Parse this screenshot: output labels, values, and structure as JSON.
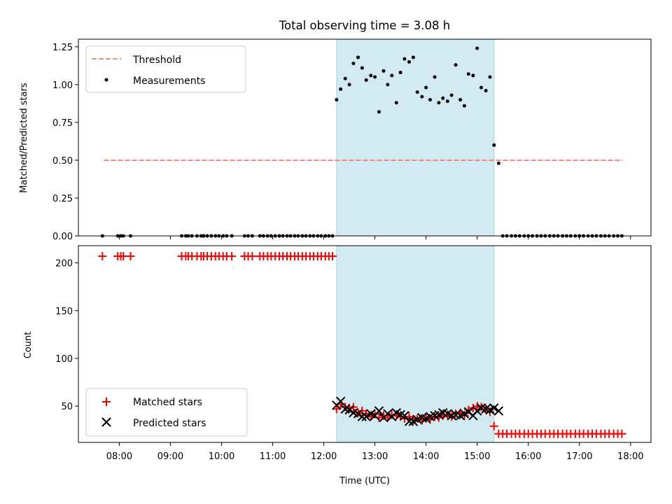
{
  "chart_data": [
    {
      "type": "scatter",
      "title": "Total observing time = 3.08 h",
      "ylabel": "Matched/Predicted stars",
      "xlabel": "",
      "xlim": [
        7.2,
        18.4
      ],
      "ylim": [
        0,
        1.3
      ],
      "yticks": [
        0.0,
        0.25,
        0.5,
        0.75,
        1.0,
        1.25
      ],
      "ytick_labels": [
        "0.00",
        "0.25",
        "0.50",
        "0.75",
        "1.00",
        "1.25"
      ],
      "shaded_region": [
        12.25,
        15.33
      ],
      "shade_color": "#d2eaf1",
      "legend_position": "upper-left",
      "legend": [
        {
          "label": "Threshold",
          "kind": "dashed-line",
          "color": "#f08080"
        },
        {
          "label": "Measurements",
          "kind": "dot",
          "color": "#000000"
        }
      ],
      "threshold": {
        "value": 0.5,
        "x_range": [
          7.7,
          17.85
        ],
        "color": "#f08080"
      },
      "measurements": {
        "x": [
          7.67,
          7.97,
          8.03,
          8.08,
          8.22,
          9.22,
          9.3,
          9.35,
          9.42,
          9.52,
          9.6,
          9.65,
          9.72,
          9.8,
          9.88,
          9.95,
          10.03,
          10.1,
          10.2,
          10.45,
          10.52,
          10.6,
          10.75,
          10.82,
          10.9,
          10.97,
          11.05,
          11.13,
          11.2,
          11.28,
          11.35,
          11.43,
          11.5,
          11.58,
          11.65,
          11.73,
          11.8,
          11.88,
          11.95,
          12.03,
          12.1,
          12.17,
          12.25,
          12.33,
          12.42,
          12.5,
          12.58,
          12.67,
          12.75,
          12.83,
          12.92,
          13.0,
          13.08,
          13.17,
          13.25,
          13.33,
          13.42,
          13.5,
          13.58,
          13.67,
          13.75,
          13.83,
          13.92,
          14.0,
          14.08,
          14.17,
          14.25,
          14.33,
          14.42,
          14.5,
          14.58,
          14.67,
          14.75,
          14.83,
          14.92,
          15.0,
          15.08,
          15.17,
          15.25,
          15.33,
          15.42,
          15.5,
          15.58,
          15.67,
          15.75,
          15.83,
          15.92,
          16.0,
          16.08,
          16.17,
          16.25,
          16.33,
          16.42,
          16.5,
          16.58,
          16.67,
          16.75,
          16.83,
          16.92,
          17.0,
          17.08,
          17.17,
          17.25,
          17.33,
          17.42,
          17.5,
          17.58,
          17.67,
          17.75,
          17.83
        ],
        "y": [
          0,
          0,
          0,
          0,
          0,
          0,
          0,
          0,
          0,
          0,
          0,
          0,
          0,
          0,
          0,
          0,
          0,
          0,
          0,
          0,
          0,
          0,
          0,
          0,
          0,
          0,
          0,
          0,
          0,
          0,
          0,
          0,
          0,
          0,
          0,
          0,
          0,
          0,
          0,
          0,
          0,
          0,
          0.9,
          0.97,
          1.04,
          1.0,
          1.14,
          1.18,
          1.11,
          1.03,
          1.06,
          1.05,
          0.82,
          1.09,
          1.0,
          1.06,
          0.88,
          1.08,
          1.17,
          1.15,
          1.18,
          0.95,
          0.92,
          0.98,
          0.9,
          1.05,
          0.88,
          0.91,
          0.89,
          0.93,
          1.13,
          0.9,
          0.86,
          1.07,
          1.06,
          1.24,
          0.98,
          0.96,
          1.05,
          0.6,
          0.48,
          0,
          0,
          0,
          0,
          0,
          0,
          0,
          0,
          0,
          0,
          0,
          0,
          0,
          0,
          0,
          0,
          0,
          0,
          0,
          0,
          0,
          0,
          0,
          0,
          0,
          0,
          0,
          0,
          0
        ]
      }
    },
    {
      "type": "scatter",
      "xlabel": "Time (UTC)",
      "ylabel": "Count",
      "xlim": [
        7.2,
        18.4
      ],
      "ylim": [
        12,
        218
      ],
      "xticks": [
        8,
        9,
        10,
        11,
        12,
        13,
        14,
        15,
        16,
        17,
        18
      ],
      "xtick_labels": [
        "08:00",
        "09:00",
        "10:00",
        "11:00",
        "12:00",
        "13:00",
        "14:00",
        "15:00",
        "16:00",
        "17:00",
        "18:00"
      ],
      "yticks": [
        50,
        100,
        150,
        200
      ],
      "ytick_labels": [
        "50",
        "100",
        "150",
        "200"
      ],
      "shaded_region": [
        12.25,
        15.33
      ],
      "shade_color": "#d2eaf1",
      "legend_position": "lower-left",
      "legend": [
        {
          "label": "Matched stars",
          "kind": "plus",
          "color": "#ff0000"
        },
        {
          "label": "Predicted stars",
          "kind": "x",
          "color": "#000000"
        }
      ],
      "series": [
        {
          "name": "Matched stars",
          "marker": "plus",
          "color": "#ff0000",
          "x": [
            7.67,
            7.97,
            8.03,
            8.08,
            8.22,
            9.22,
            9.3,
            9.35,
            9.42,
            9.52,
            9.6,
            9.65,
            9.72,
            9.8,
            9.88,
            9.95,
            10.03,
            10.1,
            10.2,
            10.45,
            10.52,
            10.6,
            10.75,
            10.82,
            10.9,
            10.97,
            11.05,
            11.13,
            11.2,
            11.28,
            11.35,
            11.43,
            11.5,
            11.58,
            11.65,
            11.73,
            11.8,
            11.88,
            11.95,
            12.03,
            12.1,
            12.17,
            12.25,
            12.33,
            12.42,
            12.5,
            12.58,
            12.67,
            12.75,
            12.83,
            12.92,
            13.0,
            13.08,
            13.17,
            13.25,
            13.33,
            13.42,
            13.5,
            13.58,
            13.67,
            13.75,
            13.83,
            13.92,
            14.0,
            14.08,
            14.17,
            14.25,
            14.33,
            14.42,
            14.5,
            14.58,
            14.67,
            14.75,
            14.83,
            14.92,
            15.0,
            15.08,
            15.17,
            15.25,
            15.33,
            15.42,
            15.5,
            15.58,
            15.67,
            15.75,
            15.83,
            15.92,
            16.0,
            16.08,
            16.17,
            16.25,
            16.33,
            16.42,
            16.5,
            16.58,
            16.67,
            16.75,
            16.83,
            16.92,
            17.0,
            17.08,
            17.17,
            17.25,
            17.33,
            17.42,
            17.5,
            17.58,
            17.67,
            17.75,
            17.83
          ],
          "y": [
            207,
            207,
            207,
            207,
            207,
            207,
            207,
            207,
            207,
            207,
            207,
            207,
            207,
            207,
            207,
            207,
            207,
            207,
            207,
            207,
            207,
            207,
            207,
            207,
            207,
            207,
            207,
            207,
            207,
            207,
            207,
            207,
            207,
            207,
            207,
            207,
            207,
            207,
            207,
            207,
            207,
            207,
            47,
            52,
            49,
            48,
            49,
            43,
            45,
            42,
            39,
            42,
            38,
            40,
            38,
            41,
            40,
            39,
            37,
            39,
            36,
            37,
            35,
            37,
            36,
            39,
            38,
            40,
            41,
            39,
            42,
            43,
            40,
            46,
            48,
            50,
            49,
            47,
            44,
            29,
            21,
            21,
            21,
            21,
            21,
            21,
            21,
            21,
            21,
            21,
            21,
            21,
            21,
            21,
            21,
            21,
            21,
            21,
            21,
            21,
            21,
            21,
            21,
            21,
            21,
            21,
            21,
            21,
            21,
            21
          ]
        },
        {
          "name": "Predicted stars",
          "marker": "x",
          "color": "#000000",
          "x": [
            12.25,
            12.33,
            12.42,
            12.5,
            12.58,
            12.67,
            12.75,
            12.83,
            12.92,
            13.0,
            13.08,
            13.17,
            13.25,
            13.33,
            13.42,
            13.5,
            13.58,
            13.67,
            13.75,
            13.83,
            13.92,
            14.0,
            14.08,
            14.17,
            14.25,
            14.33,
            14.42,
            14.5,
            14.58,
            14.67,
            14.75,
            14.83,
            14.92,
            15.0,
            15.08,
            15.17,
            15.25,
            15.33,
            15.42
          ],
          "y": [
            51,
            55,
            47,
            46,
            43,
            42,
            39,
            39,
            42,
            40,
            45,
            38,
            42,
            39,
            43,
            41,
            40,
            34,
            34,
            36,
            38,
            37,
            39,
            40,
            41,
            43,
            42,
            40,
            41,
            40,
            42,
            44,
            40,
            45,
            48,
            47,
            46,
            48,
            45
          ]
        }
      ]
    }
  ]
}
